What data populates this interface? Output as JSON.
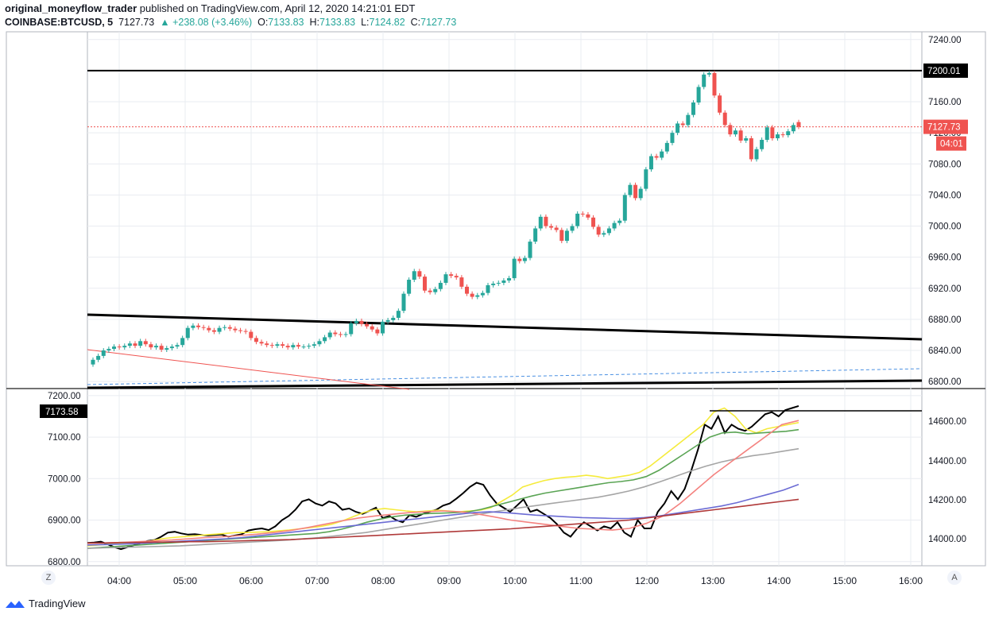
{
  "header": {
    "user": "original_moneyflow_trader",
    "published": "published on TradingView.com, April 12, 2020 14:21:01 EDT",
    "symbol": "COINBASE:BTCUSD, 5",
    "last": "7127.73",
    "change": "▲ +238.08 (+3.46%)",
    "o_label": "O:",
    "o": "7133.83",
    "h_label": "H:",
    "h": "7133.83",
    "l_label": "L:",
    "l": "7124.82",
    "c_label": "C:",
    "c": "7127.73"
  },
  "footer": {
    "brand": "TradingView",
    "z_button": "Z",
    "a_button": "A"
  },
  "colors": {
    "up": "#26a69a",
    "down": "#ef5350",
    "grid": "#e9ecf1",
    "text": "#131722"
  },
  "chart_data": [
    {
      "type": "candlestick",
      "x_ticks": [
        "04:00",
        "05:00",
        "06:00",
        "07:00",
        "08:00",
        "09:00",
        "10:00",
        "11:00",
        "12:00",
        "13:00",
        "14:00",
        "15:00",
        "16:00"
      ],
      "y_ticks": [
        "7240.00",
        "7200.00",
        "7160.00",
        "7120.00",
        "7080.00",
        "7040.00",
        "7000.00",
        "6960.00",
        "6920.00",
        "6880.00",
        "6840.00",
        "6800.00"
      ],
      "ylim": [
        6792,
        7250
      ],
      "price_tags": [
        {
          "label": "7200.01",
          "style": "black"
        },
        {
          "label": "7127.73",
          "style": "red"
        },
        {
          "label": "04:01",
          "style": "red"
        }
      ],
      "last_price": 7127.73,
      "horizontal_level": 7200.01,
      "candles_close": [
        6828,
        6833,
        6840,
        6842,
        6845,
        6844,
        6846,
        6849,
        6846,
        6852,
        6848,
        6844,
        6846,
        6841,
        6843,
        6845,
        6847,
        6856,
        6869,
        6872,
        6870,
        6869,
        6866,
        6864,
        6869,
        6870,
        6868,
        6866,
        6865,
        6864,
        6856,
        6851,
        6849,
        6847,
        6846,
        6848,
        6846,
        6844,
        6847,
        6845,
        6845,
        6846,
        6848,
        6852,
        6857,
        6863,
        6861,
        6860,
        6861,
        6875,
        6878,
        6874,
        6871,
        6867,
        6862,
        6877,
        6879,
        6882,
        6891,
        6913,
        6931,
        6942,
        6935,
        6917,
        6915,
        6919,
        6927,
        6938,
        6936,
        6934,
        6922,
        6913,
        6909,
        6911,
        6914,
        6924,
        6926,
        6927,
        6930,
        6933,
        6958,
        6955,
        6959,
        6980,
        6997,
        7012,
        7000,
        6998,
        6995,
        6981,
        6994,
        7000,
        7016,
        7015,
        7011,
        6999,
        6989,
        6991,
        6997,
        7004,
        7007,
        7040,
        7053,
        7036,
        7048,
        7073,
        7090,
        7088,
        7096,
        7107,
        7120,
        7132,
        7130,
        7143,
        7159,
        7179,
        7195,
        7197,
        7168,
        7146,
        7130,
        7118,
        7123,
        7110,
        7113,
        7086,
        7099,
        7111,
        7127,
        7113,
        7118,
        7117,
        7122,
        7130,
        7127.73
      ],
      "candles_open": [
        6822,
        6828,
        6833,
        6840,
        6842,
        6845,
        6844,
        6846,
        6849,
        6846,
        6852,
        6848,
        6844,
        6846,
        6841,
        6843,
        6845,
        6847,
        6856,
        6869,
        6872,
        6870,
        6869,
        6866,
        6864,
        6869,
        6870,
        6868,
        6866,
        6865,
        6864,
        6856,
        6851,
        6849,
        6847,
        6846,
        6848,
        6846,
        6844,
        6847,
        6845,
        6845,
        6846,
        6848,
        6852,
        6857,
        6863,
        6861,
        6860,
        6861,
        6875,
        6878,
        6874,
        6871,
        6867,
        6862,
        6877,
        6879,
        6882,
        6891,
        6913,
        6931,
        6942,
        6935,
        6917,
        6915,
        6919,
        6927,
        6938,
        6936,
        6934,
        6922,
        6913,
        6909,
        6911,
        6914,
        6924,
        6926,
        6927,
        6930,
        6933,
        6958,
        6955,
        6959,
        6980,
        6997,
        7012,
        7000,
        6998,
        6995,
        6981,
        6994,
        7000,
        7016,
        7015,
        7011,
        6999,
        6989,
        6991,
        6997,
        7004,
        7007,
        7040,
        7053,
        7036,
        7048,
        7073,
        7090,
        7088,
        7096,
        7107,
        7120,
        7132,
        7130,
        7143,
        7159,
        7179,
        7195,
        7197,
        7168,
        7146,
        7130,
        7118,
        7123,
        7110,
        7113,
        7086,
        7099,
        7111,
        7127,
        7113,
        7118,
        7117,
        7122,
        7133.83
      ]
    },
    {
      "type": "line",
      "y_left_ticks": [
        "7200.00",
        "7100.00",
        "7000.00",
        "6900.00",
        "6800.00"
      ],
      "y_right_ticks": [
        "14600.00",
        "14400.00",
        "14200.00",
        "14000.00"
      ],
      "left_ylim": [
        6790,
        7215
      ],
      "value_tag": "7173.58",
      "series": [
        {
          "color": "#000000",
          "values": [
            6845,
            6846,
            6848,
            6842,
            6835,
            6830,
            6835,
            6840,
            6845,
            6850,
            6852,
            6860,
            6870,
            6872,
            6868,
            6865,
            6866,
            6864,
            6863,
            6864,
            6865,
            6860,
            6863,
            6866,
            6875,
            6878,
            6880,
            6876,
            6885,
            6900,
            6910,
            6925,
            6945,
            6950,
            6940,
            6935,
            6945,
            6940,
            6925,
            6928,
            6920,
            6915,
            6922,
            6930,
            6905,
            6910,
            6900,
            6895,
            6912,
            6908,
            6915,
            6920,
            6925,
            6935,
            6940,
            6952,
            6965,
            6980,
            6990,
            6985,
            6960,
            6940,
            6930,
            6920,
            6935,
            6950,
            6920,
            6925,
            6915,
            6905,
            6890,
            6870,
            6860,
            6880,
            6895,
            6885,
            6875,
            6885,
            6880,
            6895,
            6870,
            6860,
            6900,
            6880,
            6880,
            6920,
            6940,
            6970,
            6950,
            6975,
            7020,
            7070,
            7130,
            7120,
            7150,
            7110,
            7130,
            7120,
            7115,
            7125,
            7140,
            7155,
            7160,
            7150,
            7165,
            7170,
            7175
          ]
        },
        {
          "color": "#f5eb3b",
          "values": [
            6838,
            6840,
            6842,
            6845,
            6846,
            6847,
            6850,
            6855,
            6858,
            6860,
            6862,
            6864,
            6866,
            6868,
            6870,
            6870,
            6871,
            6872,
            6874,
            6876,
            6879,
            6882,
            6885,
            6890,
            6898,
            6908,
            6918,
            6925,
            6928,
            6925,
            6922,
            6920,
            6922,
            6924,
            6922,
            6920,
            6922,
            6924,
            6930,
            6945,
            6960,
            6980,
            6988,
            6995,
            7000,
            7003,
            7005,
            7008,
            7005,
            7000,
            7004,
            7008,
            7015,
            7030,
            7050,
            7070,
            7090,
            7110,
            7130,
            7160,
            7170,
            7150,
            7120,
            7110,
            7120,
            7125,
            7130,
            7135
          ]
        },
        {
          "color": "#5aa454",
          "values": [
            6832,
            6834,
            6836,
            6838,
            6840,
            6842,
            6844,
            6846,
            6848,
            6850,
            6852,
            6854,
            6856,
            6858,
            6860,
            6862,
            6864,
            6866,
            6868,
            6872,
            6878,
            6886,
            6895,
            6902,
            6908,
            6912,
            6914,
            6916,
            6917,
            6918,
            6920,
            6926,
            6934,
            6942,
            6950,
            6958,
            6965,
            6970,
            6975,
            6980,
            6985,
            6990,
            6993,
            6997,
            7005,
            7020,
            7040,
            7060,
            7080,
            7100,
            7110,
            7112,
            7108,
            7110,
            7112,
            7114,
            7118
          ]
        },
        {
          "color": "#a5a5a5",
          "values": [
            6832,
            6833,
            6834,
            6835,
            6836,
            6837,
            6838,
            6840,
            6842,
            6844,
            6846,
            6848,
            6850,
            6852,
            6855,
            6858,
            6862,
            6866,
            6870,
            6876,
            6882,
            6888,
            6894,
            6900,
            6906,
            6912,
            6918,
            6924,
            6930,
            6935,
            6940,
            6945,
            6950,
            6955,
            6962,
            6970,
            6980,
            6992,
            7005,
            7018,
            7030,
            7040,
            7048,
            7055,
            7060,
            7066,
            7072
          ]
        },
        {
          "color": "#f4827f",
          "values": [
            6844,
            6845,
            6846,
            6848,
            6850,
            6852,
            6855,
            6858,
            6860,
            6863,
            6866,
            6870,
            6875,
            6882,
            6890,
            6898,
            6905,
            6910,
            6914,
            6918,
            6920,
            6922,
            6920,
            6915,
            6908,
            6900,
            6895,
            6890,
            6885,
            6880,
            6878,
            6876,
            6880,
            6892,
            6910,
            6940,
            6975,
            7010,
            7040,
            7070,
            7100,
            7130,
            7140
          ]
        },
        {
          "color": "#6b6bd4",
          "values": [
            6840,
            6841,
            6842,
            6843,
            6845,
            6847,
            6849,
            6851,
            6853,
            6855,
            6858,
            6862,
            6866,
            6870,
            6874,
            6878,
            6882,
            6886,
            6890,
            6894,
            6898,
            6902,
            6906,
            6910,
            6914,
            6918,
            6920,
            6918,
            6915,
            6912,
            6910,
            6908,
            6906,
            6905,
            6904,
            6904,
            6906,
            6910,
            6916,
            6922,
            6928,
            6934,
            6942,
            6952,
            6962,
            6972,
            6986
          ]
        },
        {
          "color": "#b03a3a",
          "values": [
            6845,
            6845,
            6846,
            6846,
            6847,
            6847,
            6848,
            6848,
            6849,
            6850,
            6851,
            6852,
            6853,
            6855,
            6857,
            6859,
            6861,
            6863,
            6865,
            6867,
            6869,
            6871,
            6873,
            6875,
            6877,
            6879,
            6882,
            6885,
            6888,
            6891,
            6894,
            6897,
            6900,
            6905,
            6910,
            6915,
            6920,
            6925,
            6930,
            6935,
            6940,
            6945,
            6950
          ]
        }
      ]
    }
  ]
}
